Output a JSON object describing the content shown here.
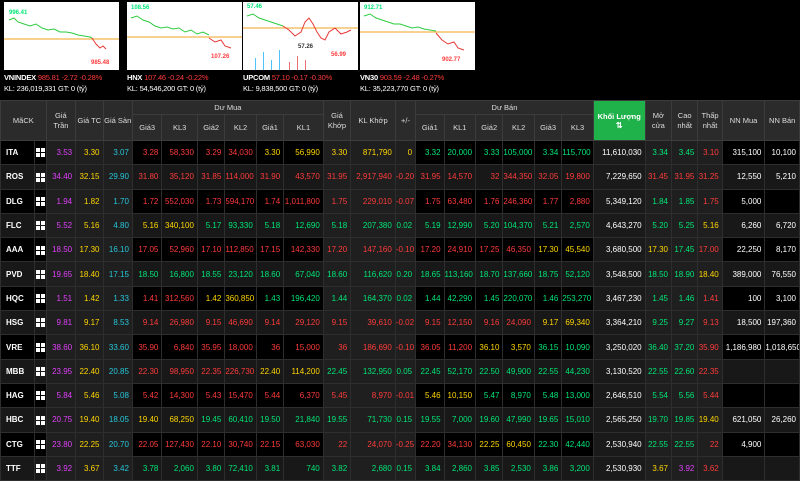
{
  "indices": [
    {
      "name": "VNINDEX",
      "value": "985.81",
      "change": "-2.72",
      "pct": "-0.28%",
      "kl_label": "KL:",
      "kl": "236,019,331",
      "gt_label": "GT: 0 (tỷ)",
      "hi": "996.41",
      "lo": "985.48",
      "cur": ""
    },
    {
      "name": "HNX",
      "value": "107.46",
      "change": "-0.24",
      "pct": "-0.22%",
      "kl_label": "KL:",
      "kl": "54,546,200",
      "gt_label": "GT: 0 (tỷ)",
      "hi": "108.56",
      "lo": "107.26",
      "cur": ""
    },
    {
      "name": "UPCOM",
      "value": "57.10",
      "change": "-0.17",
      "pct": "-0.30%",
      "kl_label": "KL:",
      "kl": "9,838,500",
      "gt_label": "GT: 0 (tỷ)",
      "hi": "57.46",
      "lo": "56.99",
      "cur": "57.26"
    },
    {
      "name": "VN30",
      "value": "903.59",
      "change": "-2.48",
      "pct": "-0.27%",
      "kl_label": "KL:",
      "kl": "35,223,770",
      "gt_label": "GT: 0 (tỷ)",
      "hi": "912.71",
      "lo": "902.77",
      "cur": ""
    }
  ],
  "headers": {
    "symbol": "MãCK",
    "ceiling": "Giá Trần",
    "ref": "Giá TC",
    "floor": "Giá Sàn",
    "bid_group": "Dư Mua",
    "ask_group": "Dư Bán",
    "bid_price3": "Giá3",
    "bid_vol3": "KL3",
    "bid_price2": "Giá2",
    "bid_vol2": "KL2",
    "bid_price1": "Giá1",
    "bid_vol1": "KL1",
    "match_price": "Giá Khớp",
    "match_vol": "KL Khớp",
    "change": "+/-",
    "ask_price1": "Giá1",
    "ask_vol1": "KL1",
    "ask_price2": "Giá2",
    "ask_vol2": "KL2",
    "ask_price3": "Giá3",
    "ask_vol3": "KL3",
    "total_vol": "Khối Lượng",
    "total_vol_arrow": "⇅",
    "open": "Mở cửa",
    "high": "Cao nhất",
    "low": "Thấp nhất",
    "foreign_buy": "NN Mua",
    "foreign_sell": "NN Bán"
  },
  "rows": [
    {
      "sym": "ITA",
      "ceil": "3.53",
      "ref": "3.30",
      "floor": "3.07",
      "b3": "3.28",
      "bv3": "58,330",
      "b2": "3.29",
      "bv2": "34,030",
      "b1": "3.30",
      "bv1": "56,990",
      "mp": "3.30",
      "mv": "871,790",
      "chg": "0",
      "a1": "3.32",
      "av1": "20,000",
      "a2": "3.33",
      "av2": "105,000",
      "a3": "3.34",
      "av3": "115,700",
      "tv": "11,610,030",
      "op": "3.34",
      "hi": "3.45",
      "lo": "3.10",
      "nb": "315,100",
      "ns": "10,100",
      "c": {
        "b3": "dn",
        "b2": "dn",
        "b1": "ref",
        "mp": "ref",
        "chg": "ref",
        "a1": "up",
        "a2": "up",
        "a3": "up",
        "op": "up",
        "hi": "up",
        "lo": "dn"
      }
    },
    {
      "sym": "ROS",
      "ceil": "34.40",
      "ref": "32.15",
      "floor": "29.90",
      "b3": "31.80",
      "bv3": "35,120",
      "b2": "31.85",
      "bv2": "114,000",
      "b1": "31.90",
      "bv1": "43,570",
      "mp": "31.95",
      "mv": "2,917,940",
      "chg": "-0.20",
      "a1": "31.95",
      "av1": "14,570",
      "a2": "32",
      "av2": "344,350",
      "a3": "32.05",
      "av3": "19,800",
      "tv": "7,229,650",
      "op": "31.45",
      "hi": "31.95",
      "lo": "31.25",
      "nb": "12,550",
      "ns": "5,210",
      "c": {
        "b3": "dn",
        "b2": "dn",
        "b1": "dn",
        "mp": "dn",
        "chg": "dn",
        "a1": "dn",
        "a2": "dn",
        "a3": "dn",
        "op": "dn",
        "hi": "dn",
        "lo": "dn"
      }
    },
    {
      "sym": "DLG",
      "ceil": "1.94",
      "ref": "1.82",
      "floor": "1.70",
      "b3": "1.72",
      "bv3": "552,030",
      "b2": "1.73",
      "bv2": "594,170",
      "b1": "1.74",
      "bv1": "1,011,800",
      "mp": "1.75",
      "mv": "229,010",
      "chg": "-0.07",
      "a1": "1.75",
      "av1": "63,480",
      "a2": "1.76",
      "av2": "246,360",
      "a3": "1.77",
      "av3": "2,880",
      "tv": "5,349,120",
      "op": "1.84",
      "hi": "1.85",
      "lo": "1.75",
      "nb": "5,000",
      "ns": "",
      "c": {
        "b3": "dn",
        "b2": "dn",
        "b1": "dn",
        "mp": "dn",
        "chg": "dn",
        "a1": "dn",
        "a2": "dn",
        "a3": "dn",
        "op": "up",
        "hi": "up",
        "lo": "dn"
      }
    },
    {
      "sym": "FLC",
      "ceil": "5.52",
      "ref": "5.16",
      "floor": "4.80",
      "b3": "5.16",
      "bv3": "340,100",
      "b2": "5.17",
      "bv2": "93,330",
      "b1": "5.18",
      "bv1": "12,690",
      "mp": "5.18",
      "mv": "207,380",
      "chg": "0.02",
      "a1": "5.19",
      "av1": "12,990",
      "a2": "5.20",
      "av2": "104,370",
      "a3": "5.21",
      "av3": "2,570",
      "tv": "4,643,270",
      "op": "5.20",
      "hi": "5.25",
      "lo": "5.16",
      "nb": "6,260",
      "ns": "6,720",
      "c": {
        "b3": "ref",
        "b2": "up",
        "b1": "up",
        "mp": "up",
        "chg": "up",
        "a1": "up",
        "a2": "up",
        "a3": "up",
        "op": "up",
        "hi": "up",
        "lo": "ref"
      }
    },
    {
      "sym": "AAA",
      "ceil": "18.50",
      "ref": "17.30",
      "floor": "16.10",
      "b3": "17.05",
      "bv3": "52,960",
      "b2": "17.10",
      "bv2": "112,850",
      "b1": "17.15",
      "bv1": "142,330",
      "mp": "17.20",
      "mv": "147,160",
      "chg": "-0.10",
      "a1": "17.20",
      "av1": "24,910",
      "a2": "17.25",
      "av2": "46,350",
      "a3": "17.30",
      "av3": "45,540",
      "tv": "3,680,500",
      "op": "17.30",
      "hi": "17.45",
      "lo": "17.00",
      "nb": "22,250",
      "ns": "8,170",
      "c": {
        "b3": "dn",
        "b2": "dn",
        "b1": "dn",
        "mp": "dn",
        "chg": "dn",
        "a1": "dn",
        "a2": "dn",
        "a3": "ref",
        "op": "ref",
        "hi": "up",
        "lo": "dn"
      }
    },
    {
      "sym": "PVD",
      "ceil": "19.65",
      "ref": "18.40",
      "floor": "17.15",
      "b3": "18.50",
      "bv3": "16,800",
      "b2": "18.55",
      "bv2": "23,120",
      "b1": "18.60",
      "bv1": "67,040",
      "mp": "18.60",
      "mv": "116,620",
      "chg": "0.20",
      "a1": "18.65",
      "av1": "113,160",
      "a2": "18.70",
      "av2": "137,660",
      "a3": "18.75",
      "av3": "52,120",
      "tv": "3,548,500",
      "op": "18.50",
      "hi": "18.90",
      "lo": "18.40",
      "nb": "389,000",
      "ns": "76,550",
      "c": {
        "b3": "up",
        "b2": "up",
        "b1": "up",
        "mp": "up",
        "chg": "up",
        "a1": "up",
        "a2": "up",
        "a3": "up",
        "op": "up",
        "hi": "up",
        "lo": "ref"
      }
    },
    {
      "sym": "HQC",
      "ceil": "1.51",
      "ref": "1.42",
      "floor": "1.33",
      "b3": "1.41",
      "bv3": "312,560",
      "b2": "1.42",
      "bv2": "360,850",
      "b1": "1.43",
      "bv1": "196,420",
      "mp": "1.44",
      "mv": "164,370",
      "chg": "0.02",
      "a1": "1.44",
      "av1": "42,290",
      "a2": "1.45",
      "av2": "220,070",
      "a3": "1.46",
      "av3": "253,270",
      "tv": "3,467,230",
      "op": "1.45",
      "hi": "1.46",
      "lo": "1.41",
      "nb": "100",
      "ns": "3,100",
      "c": {
        "b3": "dn",
        "b2": "ref",
        "b1": "up",
        "mp": "up",
        "chg": "up",
        "a1": "up",
        "a2": "up",
        "a3": "up",
        "op": "up",
        "hi": "up",
        "lo": "dn"
      }
    },
    {
      "sym": "HSG",
      "ceil": "9.81",
      "ref": "9.17",
      "floor": "8.53",
      "b3": "9.14",
      "bv3": "26,980",
      "b2": "9.15",
      "bv2": "46,690",
      "b1": "9.14",
      "bv1": "29,120",
      "mp": "9.15",
      "mv": "39,610",
      "chg": "-0.02",
      "a1": "9.15",
      "av1": "12,150",
      "a2": "9.16",
      "av2": "24,090",
      "a3": "9.17",
      "av3": "69,340",
      "tv": "3,364,210",
      "op": "9.25",
      "hi": "9.27",
      "lo": "9.13",
      "nb": "18,500",
      "ns": "197,360",
      "c": {
        "b3": "dn",
        "b2": "dn",
        "b1": "dn",
        "mp": "dn",
        "chg": "dn",
        "a1": "dn",
        "a2": "dn",
        "a3": "ref",
        "op": "up",
        "hi": "up",
        "lo": "dn"
      }
    },
    {
      "sym": "VRE",
      "ceil": "38.60",
      "ref": "36.10",
      "floor": "33.60",
      "b3": "35.90",
      "bv3": "6,840",
      "b2": "35.95",
      "bv2": "18,000",
      "b1": "36",
      "bv1": "15,000",
      "mp": "36",
      "mv": "186,690",
      "chg": "-0.10",
      "a1": "36.05",
      "av1": "11,200",
      "a2": "36.10",
      "av2": "3,570",
      "a3": "36.15",
      "av3": "10,090",
      "tv": "3,250,020",
      "op": "36.40",
      "hi": "37.20",
      "lo": "35.90",
      "nb": "1,186,980",
      "ns": "1,018,650",
      "c": {
        "b3": "dn",
        "b2": "dn",
        "b1": "dn",
        "mp": "dn",
        "chg": "dn",
        "a1": "dn",
        "a2": "ref",
        "a3": "up",
        "op": "up",
        "hi": "up",
        "lo": "dn"
      }
    },
    {
      "sym": "MBB",
      "ceil": "23.95",
      "ref": "22.40",
      "floor": "20.85",
      "b3": "22.30",
      "bv3": "98,950",
      "b2": "22.35",
      "bv2": "226,730",
      "b1": "22.40",
      "bv1": "114,200",
      "mp": "22.45",
      "mv": "132,950",
      "chg": "0.05",
      "a1": "22.45",
      "av1": "52,170",
      "a2": "22.50",
      "av2": "49,900",
      "a3": "22.55",
      "av3": "44,230",
      "tv": "3,130,520",
      "op": "22.55",
      "hi": "22.60",
      "lo": "22.35",
      "nb": "",
      "ns": "",
      "c": {
        "b3": "dn",
        "b2": "dn",
        "b1": "ref",
        "mp": "up",
        "chg": "up",
        "a1": "up",
        "a2": "up",
        "a3": "up",
        "op": "up",
        "hi": "up",
        "lo": "dn"
      }
    },
    {
      "sym": "HAG",
      "ceil": "5.84",
      "ref": "5.46",
      "floor": "5.08",
      "b3": "5.42",
      "bv3": "14,300",
      "b2": "5.43",
      "bv2": "15,470",
      "b1": "5.44",
      "bv1": "6,370",
      "mp": "5.45",
      "mv": "8,970",
      "chg": "-0.01",
      "a1": "5.46",
      "av1": "10,150",
      "a2": "5.47",
      "av2": "8,970",
      "a3": "5.48",
      "av3": "13,000",
      "tv": "2,646,510",
      "op": "5.54",
      "hi": "5.56",
      "lo": "5.44",
      "nb": "",
      "ns": "",
      "c": {
        "b3": "dn",
        "b2": "dn",
        "b1": "dn",
        "mp": "dn",
        "chg": "dn",
        "a1": "ref",
        "a2": "up",
        "a3": "up",
        "op": "up",
        "hi": "up",
        "lo": "dn"
      }
    },
    {
      "sym": "HBC",
      "ceil": "20.75",
      "ref": "19.40",
      "floor": "18.05",
      "b3": "19.40",
      "bv3": "68,250",
      "b2": "19.45",
      "bv2": "60,410",
      "b1": "19.50",
      "bv1": "21,840",
      "mp": "19.55",
      "mv": "71,730",
      "chg": "0.15",
      "a1": "19.55",
      "av1": "7,000",
      "a2": "19.60",
      "av2": "47,990",
      "a3": "19.65",
      "av3": "15,010",
      "tv": "2,565,250",
      "op": "19.70",
      "hi": "19.85",
      "lo": "19.40",
      "nb": "621,050",
      "ns": "26,260",
      "c": {
        "b3": "ref",
        "b2": "up",
        "b1": "up",
        "mp": "up",
        "chg": "up",
        "a1": "up",
        "a2": "up",
        "a3": "up",
        "op": "up",
        "hi": "up",
        "lo": "ref"
      }
    },
    {
      "sym": "CTG",
      "ceil": "23.80",
      "ref": "22.25",
      "floor": "20.70",
      "b3": "22.05",
      "bv3": "127,430",
      "b2": "22.10",
      "bv2": "30,740",
      "b1": "22.15",
      "bv1": "63,030",
      "mp": "22",
      "mv": "24,070",
      "chg": "-0.25",
      "a1": "22.20",
      "av1": "34,130",
      "a2": "22.25",
      "av2": "60,450",
      "a3": "22.30",
      "av3": "42,440",
      "tv": "2,530,940",
      "op": "22.55",
      "hi": "22.55",
      "lo": "22",
      "nb": "4,900",
      "ns": "",
      "c": {
        "b3": "dn",
        "b2": "dn",
        "b1": "dn",
        "mp": "dn",
        "chg": "dn",
        "a1": "dn",
        "a2": "ref",
        "a3": "up",
        "op": "up",
        "hi": "up",
        "lo": "dn"
      }
    },
    {
      "sym": "TTF",
      "ceil": "3.92",
      "ref": "3.67",
      "floor": "3.42",
      "b3": "3.78",
      "bv3": "2,060",
      "b2": "3.80",
      "bv2": "72,410",
      "b1": "3.81",
      "bv1": "740",
      "mp": "3.82",
      "mv": "2,680",
      "chg": "0.15",
      "a1": "3.84",
      "av1": "2,860",
      "a2": "3.85",
      "av2": "2,530",
      "a3": "3.86",
      "av3": "3,200",
      "tv": "2,530,930",
      "op": "3.67",
      "hi": "3.92",
      "lo": "3.62",
      "nb": "",
      "ns": "",
      "c": {
        "b3": "up",
        "b2": "up",
        "b1": "up",
        "mp": "up",
        "chg": "up",
        "a1": "up",
        "a2": "up",
        "a3": "up",
        "op": "ref",
        "hi": "ce",
        "lo": "dn"
      }
    }
  ]
}
